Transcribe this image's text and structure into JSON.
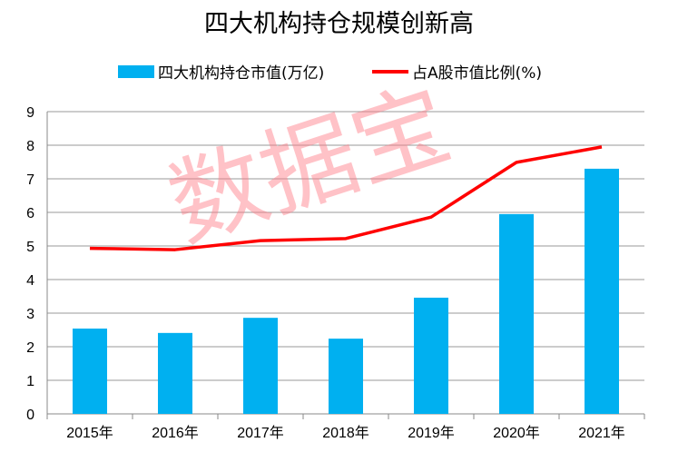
{
  "chart_data": {
    "type": "bar+line",
    "title": "四大机构持仓规模创新高",
    "categories": [
      "2015年",
      "2016年",
      "2017年",
      "2018年",
      "2019年",
      "2020年",
      "2021年"
    ],
    "series": [
      {
        "name": "四大机构持仓市值(万亿)",
        "type": "bar",
        "color": "#00B0F0",
        "values": [
          2.54,
          2.41,
          2.86,
          2.24,
          3.46,
          5.95,
          7.3
        ]
      },
      {
        "name": "占A股市值比例(%)",
        "type": "line",
        "color": "#FF0000",
        "values": [
          4.93,
          4.89,
          5.16,
          5.22,
          5.86,
          7.49,
          7.95
        ]
      }
    ],
    "ylim": [
      0,
      9
    ],
    "yticks": [
      "0",
      "1",
      "2",
      "3",
      "4",
      "5",
      "6",
      "7",
      "8",
      "9"
    ],
    "grid": true,
    "legend": "top"
  },
  "watermark": "数据宝"
}
